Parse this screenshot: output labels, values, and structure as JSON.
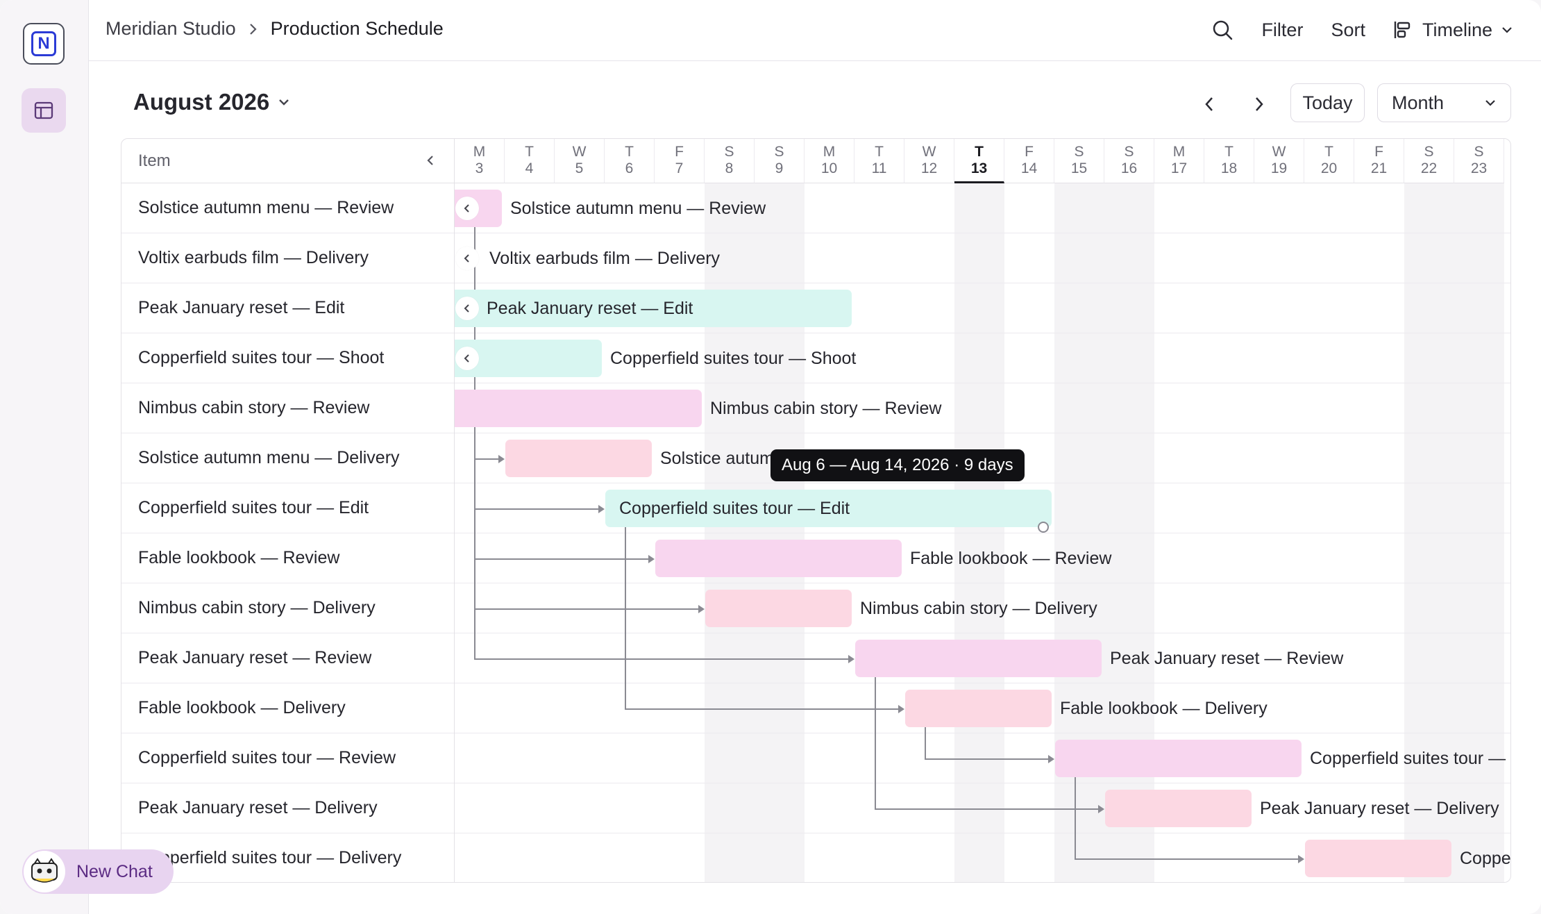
{
  "breadcrumb": {
    "workspace": "Meridian Studio",
    "page": "Production Schedule"
  },
  "toolbar": {
    "filter": "Filter",
    "sort": "Sort",
    "view": "Timeline"
  },
  "calendar": {
    "month_label": "August 2026",
    "today": "Today",
    "scale": "Month"
  },
  "list": {
    "header": "Item"
  },
  "days": [
    {
      "dow": "M",
      "num": "3"
    },
    {
      "dow": "T",
      "num": "4"
    },
    {
      "dow": "W",
      "num": "5"
    },
    {
      "dow": "T",
      "num": "6"
    },
    {
      "dow": "F",
      "num": "7"
    },
    {
      "dow": "S",
      "num": "8"
    },
    {
      "dow": "S",
      "num": "9"
    },
    {
      "dow": "M",
      "num": "10"
    },
    {
      "dow": "T",
      "num": "11"
    },
    {
      "dow": "W",
      "num": "12"
    },
    {
      "dow": "T",
      "num": "13"
    },
    {
      "dow": "F",
      "num": "14"
    },
    {
      "dow": "S",
      "num": "15"
    },
    {
      "dow": "S",
      "num": "16"
    },
    {
      "dow": "M",
      "num": "17"
    },
    {
      "dow": "T",
      "num": "18"
    },
    {
      "dow": "W",
      "num": "19"
    },
    {
      "dow": "T",
      "num": "20"
    },
    {
      "dow": "F",
      "num": "21"
    },
    {
      "dow": "S",
      "num": "22"
    },
    {
      "dow": "S",
      "num": "23"
    }
  ],
  "today_day": "13",
  "rows": [
    {
      "name": "Solstice autumn menu — Review",
      "type": "review",
      "start": "2026-08-01",
      "end": "2026-08-03",
      "bar_label": "Solstice autumn menu — Review",
      "handle": true
    },
    {
      "name": "Voltix earbuds film — Delivery",
      "type": "delivery",
      "start": "2026-08-01",
      "end": "2026-08-02",
      "bar_label": "Voltix earbuds film — Delivery",
      "handle": true
    },
    {
      "name": "Peak January reset — Edit",
      "type": "edit",
      "start": "2026-07-30",
      "end": "2026-08-10",
      "bar_label": "Peak January reset — Edit",
      "handle": true
    },
    {
      "name": "Copperfield suites tour — Shoot",
      "type": "shoot",
      "start": "2026-08-01",
      "end": "2026-08-05",
      "bar_label": "Copperfield suites tour — Shoot",
      "handle": true
    },
    {
      "name": "Nimbus cabin story — Review",
      "type": "review",
      "start": "2026-08-02",
      "end": "2026-08-07",
      "bar_label": "Nimbus cabin story — Review",
      "handle": false
    },
    {
      "name": "Solstice autumn menu — Delivery",
      "type": "delivery",
      "start": "2026-08-04",
      "end": "2026-08-06",
      "bar_label": "Solstice autumn menu — Delivery",
      "handle": false
    },
    {
      "name": "Copperfield suites tour — Edit",
      "type": "edit",
      "start": "2026-08-06",
      "end": "2026-08-14",
      "bar_label": "Copperfield suites tour — Edit",
      "handle": false
    },
    {
      "name": "Fable lookbook — Review",
      "type": "review",
      "start": "2026-08-07",
      "end": "2026-08-11",
      "bar_label": "Fable lookbook — Review",
      "handle": false
    },
    {
      "name": "Nimbus cabin story — Delivery",
      "type": "delivery",
      "start": "2026-08-08",
      "end": "2026-08-10",
      "bar_label": "Nimbus cabin story — Delivery",
      "handle": false
    },
    {
      "name": "Peak January reset — Review",
      "type": "review",
      "start": "2026-08-11",
      "end": "2026-08-15",
      "bar_label": "Peak January reset — Review",
      "handle": false
    },
    {
      "name": "Fable lookbook — Delivery",
      "type": "delivery",
      "start": "2026-08-12",
      "end": "2026-08-14",
      "bar_label": "Fable lookbook — Delivery",
      "handle": false
    },
    {
      "name": "Copperfield suites tour — Review",
      "type": "review",
      "start": "2026-08-15",
      "end": "2026-08-19",
      "bar_label": "Copperfield suites tour — Review",
      "handle": false
    },
    {
      "name": "Peak January reset — Delivery",
      "type": "delivery",
      "start": "2026-08-16",
      "end": "2026-08-18",
      "bar_label": "Peak January reset — Delivery",
      "handle": false
    },
    {
      "name": "Copperfield suites tour — Delivery",
      "type": "delivery",
      "start": "2026-08-20",
      "end": "2026-08-22",
      "bar_label": "Copperfield suites tour — Delivery",
      "handle": false
    }
  ],
  "dependencies": [
    {
      "from": 0,
      "to": 5
    },
    {
      "from": 3,
      "to": 6
    },
    {
      "from": 2,
      "to": 7
    },
    {
      "from": 4,
      "to": 8
    },
    {
      "from": 2,
      "to": 9
    },
    {
      "from": 6,
      "to": 10
    },
    {
      "from": 10,
      "to": 11
    },
    {
      "from": 9,
      "to": 12
    },
    {
      "from": 11,
      "to": 13
    }
  ],
  "tooltip": {
    "row": 6,
    "text": "Aug 6 — Aug 14, 2026 · 9 days"
  },
  "chat": {
    "label": "New Chat"
  },
  "colors": {
    "review": "#f8d6ef",
    "delivery": "#fcd8e3",
    "edit": "#d8f6f1",
    "accent": "#2b3bd6"
  }
}
